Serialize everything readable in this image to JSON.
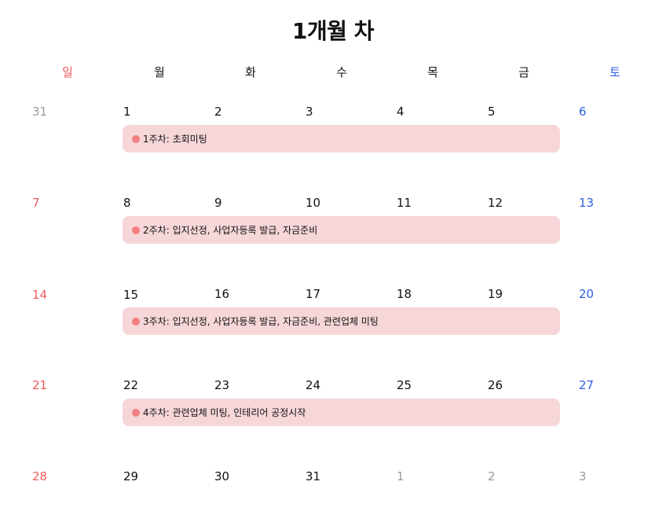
{
  "title": "1개월 차",
  "weekdays": [
    "일",
    "월",
    "화",
    "수",
    "목",
    "금",
    "토"
  ],
  "colors": {
    "sunday": "#f05a5a",
    "saturday": "#2f5fe0",
    "muted": "#9a9a9a",
    "event_background": "#f6d6d8",
    "event_dot": "#f47f80"
  },
  "weeks": [
    {
      "days": [
        "31",
        "1",
        "2",
        "3",
        "4",
        "5",
        "6"
      ],
      "event": "1주차: 초회미팅"
    },
    {
      "days": [
        "7",
        "8",
        "9",
        "10",
        "11",
        "12",
        "13"
      ],
      "event": "2주차: 입지선정, 사업자등록 발급, 자금준비"
    },
    {
      "days": [
        "14",
        "15",
        "16",
        "17",
        "18",
        "19",
        "20"
      ],
      "event": "3주차: 입지선정, 사업자등록 발급, 자금준비, 관련업체 미팅"
    },
    {
      "days": [
        "21",
        "22",
        "23",
        "24",
        "25",
        "26",
        "27"
      ],
      "event": "4주차: 관련업체 미팅, 인테리어 공정시작"
    },
    {
      "days": [
        "28",
        "29",
        "30",
        "31",
        "1",
        "2",
        "3"
      ]
    }
  ]
}
